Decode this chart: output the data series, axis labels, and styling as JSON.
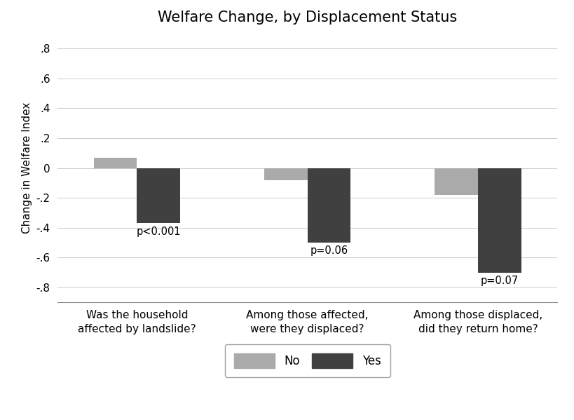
{
  "title": "Welfare Change, by Displacement Status",
  "ylabel": "Change in Welfare Index",
  "groups": [
    "Was the household\naffected by landslide?",
    "Among those affected,\nwere they displaced?",
    "Among those displaced,\ndid they return home?"
  ],
  "no_values": [
    0.07,
    -0.08,
    -0.18
  ],
  "yes_values": [
    -0.37,
    -0.5,
    -0.7
  ],
  "p_labels": [
    "p<0.001",
    "p=0.06",
    "p=0.07"
  ],
  "color_no": "#aaaaaa",
  "color_yes": "#404040",
  "ylim": [
    -0.9,
    0.9
  ],
  "yticks": [
    -0.8,
    -0.6,
    -0.4,
    -0.2,
    0.0,
    0.2,
    0.4,
    0.6,
    0.8
  ],
  "ytick_labels": [
    "-.8",
    "-.6",
    "-.4",
    "-.2",
    "0",
    ".2",
    ".4",
    ".6",
    ".8"
  ],
  "bar_width": 0.38,
  "group_positions": [
    0.5,
    2.0,
    3.5
  ],
  "legend_labels": [
    "No",
    "Yes"
  ],
  "background_color": "#ffffff",
  "grid_color": "#cccccc",
  "title_fontsize": 15,
  "label_fontsize": 11,
  "tick_fontsize": 11,
  "p_fontsize": 10.5
}
